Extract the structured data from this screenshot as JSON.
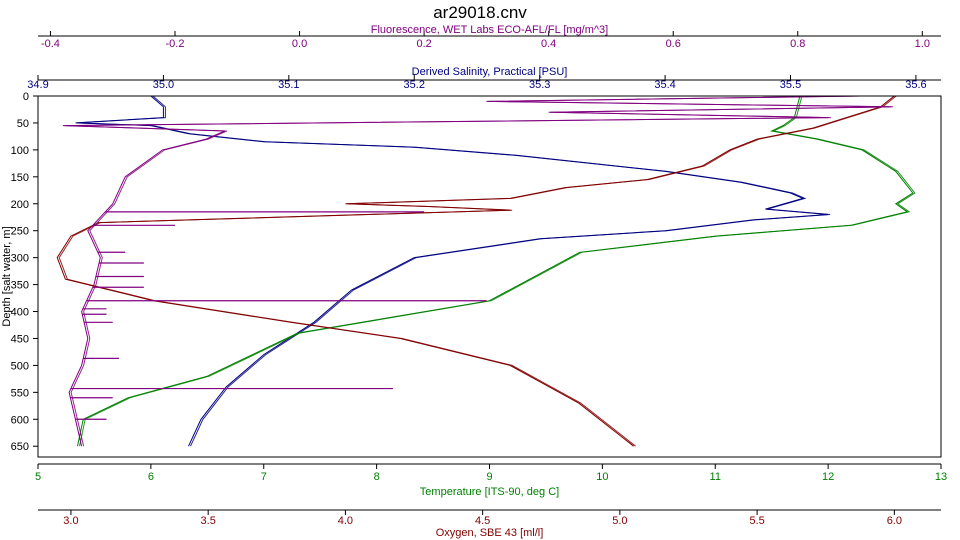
{
  "chart_data": {
    "type": "line",
    "title": "ar29018.cnv",
    "colors": {
      "fluorescence": "#800080",
      "salinity": "#000080",
      "temperature": "#008000",
      "oxygen": "#800000",
      "frame": "#000000"
    },
    "y_axis": {
      "label": "Depth [salt water, m]",
      "range": [
        0,
        670
      ],
      "ticks": [
        "0",
        "50",
        "100",
        "150",
        "200",
        "250",
        "300",
        "350",
        "400",
        "450",
        "500",
        "550",
        "600",
        "650"
      ],
      "inverted": true
    },
    "top_axes": [
      {
        "key": "fluorescence",
        "label": "Fluorescence, WET Labs ECO-AFL/FL [mg/m^3]",
        "range": [
          -0.42,
          1.03
        ],
        "ticks": [
          "-0.4",
          "-0.2",
          "0.0",
          "0.2",
          "0.4",
          "0.6",
          "0.8",
          "1.0"
        ]
      },
      {
        "key": "salinity",
        "label": "Derived Salinity, Practical [PSU]",
        "range": [
          34.9,
          35.62
        ],
        "ticks": [
          "34.9",
          "35.0",
          "35.1",
          "35.2",
          "35.3",
          "35.4",
          "35.5",
          "35.6"
        ]
      }
    ],
    "bottom_axes": [
      {
        "key": "temperature",
        "label": "Temperature [ITS-90, deg C]",
        "range": [
          5,
          13
        ],
        "ticks": [
          "5",
          "6",
          "7",
          "8",
          "9",
          "10",
          "11",
          "12",
          "13"
        ]
      },
      {
        "key": "oxygen",
        "label": "Oxygen, SBE 43 [ml/l]",
        "range": [
          2.88,
          6.17
        ],
        "ticks": [
          "3.0",
          "3.5",
          "4.0",
          "4.5",
          "5.0",
          "5.5",
          "6.0"
        ]
      }
    ],
    "series": [
      {
        "key": "salinity",
        "points": [
          [
            34.99,
            0
          ],
          [
            35.0,
            20
          ],
          [
            35.0,
            40
          ],
          [
            34.93,
            50
          ],
          [
            34.99,
            55
          ],
          [
            35.02,
            70
          ],
          [
            35.08,
            85
          ],
          [
            35.2,
            95
          ],
          [
            35.28,
            110
          ],
          [
            35.4,
            140
          ],
          [
            35.46,
            160
          ],
          [
            35.5,
            180
          ],
          [
            35.51,
            190
          ],
          [
            35.48,
            210
          ],
          [
            35.53,
            220
          ],
          [
            35.47,
            230
          ],
          [
            35.4,
            250
          ],
          [
            35.3,
            265
          ],
          [
            35.2,
            300
          ],
          [
            35.15,
            360
          ],
          [
            35.12,
            420
          ],
          [
            35.08,
            480
          ],
          [
            35.05,
            540
          ],
          [
            35.03,
            600
          ],
          [
            35.02,
            650
          ]
        ]
      },
      {
        "key": "temperature",
        "points": [
          [
            11.75,
            0
          ],
          [
            11.7,
            40
          ],
          [
            11.6,
            55
          ],
          [
            11.5,
            65
          ],
          [
            11.9,
            80
          ],
          [
            12.3,
            100
          ],
          [
            12.6,
            140
          ],
          [
            12.75,
            180
          ],
          [
            12.6,
            200
          ],
          [
            12.7,
            215
          ],
          [
            12.2,
            240
          ],
          [
            11.0,
            260
          ],
          [
            9.8,
            290
          ],
          [
            9.0,
            380
          ],
          [
            7.3,
            440
          ],
          [
            6.5,
            520
          ],
          [
            5.8,
            560
          ],
          [
            5.4,
            600
          ],
          [
            5.35,
            650
          ]
        ]
      },
      {
        "key": "oxygen",
        "points": [
          [
            6.0,
            0
          ],
          [
            5.95,
            20
          ],
          [
            5.7,
            60
          ],
          [
            5.5,
            80
          ],
          [
            5.4,
            100
          ],
          [
            5.3,
            130
          ],
          [
            5.1,
            155
          ],
          [
            4.8,
            170
          ],
          [
            4.6,
            190
          ],
          [
            4.0,
            200
          ],
          [
            4.3,
            205
          ],
          [
            4.6,
            212
          ],
          [
            3.1,
            235
          ],
          [
            3.0,
            260
          ],
          [
            2.95,
            300
          ],
          [
            2.98,
            340
          ],
          [
            3.3,
            380
          ],
          [
            3.8,
            420
          ],
          [
            4.2,
            450
          ],
          [
            4.6,
            500
          ],
          [
            4.85,
            570
          ],
          [
            5.0,
            630
          ],
          [
            5.05,
            650
          ]
        ]
      },
      {
        "key": "fluorescence",
        "points": [
          [
            0.9,
            0
          ],
          [
            0.3,
            10
          ],
          [
            0.95,
            20
          ],
          [
            0.4,
            30
          ],
          [
            0.85,
            40
          ],
          [
            -0.38,
            55
          ],
          [
            -0.12,
            65
          ],
          [
            -0.15,
            80
          ],
          [
            -0.22,
            100
          ],
          [
            -0.28,
            150
          ],
          [
            -0.3,
            200
          ],
          [
            -0.34,
            250
          ],
          [
            -0.32,
            300
          ],
          [
            -0.33,
            350
          ],
          [
            -0.35,
            400
          ],
          [
            -0.34,
            450
          ],
          [
            -0.35,
            500
          ],
          [
            -0.37,
            550
          ],
          [
            -0.36,
            600
          ],
          [
            -0.35,
            650
          ]
        ],
        "spikes": [
          [
            0.2,
            215
          ],
          [
            -0.2,
            240
          ],
          [
            -0.28,
            290
          ],
          [
            -0.25,
            310
          ],
          [
            -0.25,
            335
          ],
          [
            -0.25,
            355
          ],
          [
            0.3,
            380
          ],
          [
            -0.31,
            395
          ],
          [
            -0.31,
            405
          ],
          [
            -0.3,
            420
          ],
          [
            -0.29,
            487
          ],
          [
            0.15,
            543
          ],
          [
            -0.3,
            560
          ],
          [
            -0.31,
            600
          ]
        ]
      }
    ]
  }
}
